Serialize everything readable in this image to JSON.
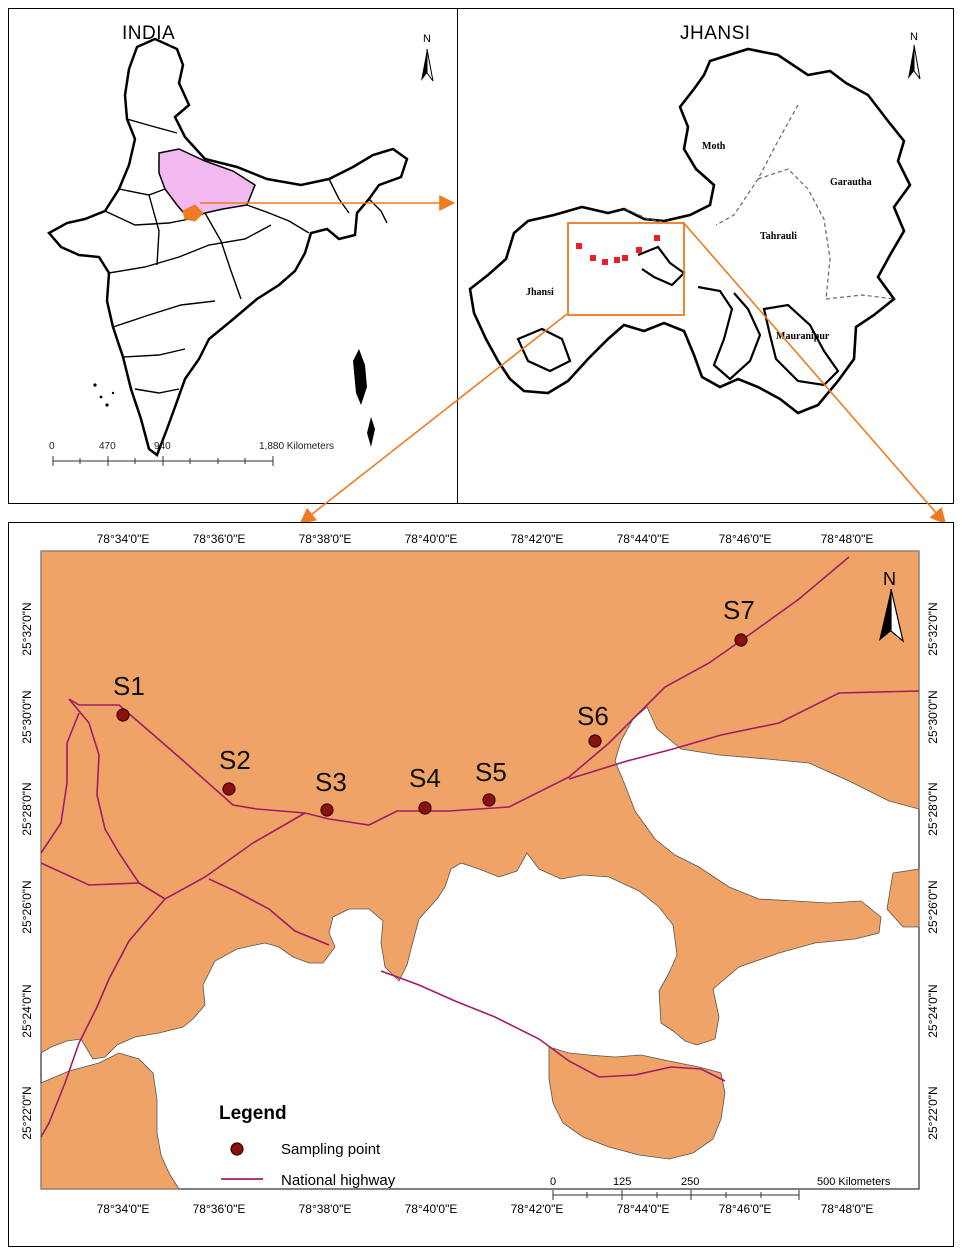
{
  "india_panel": {
    "title": "INDIA",
    "north_label": "N",
    "scale": {
      "ticks": [
        "0",
        "470",
        "940",
        "1,880 Kilometers"
      ]
    }
  },
  "jhansi_panel": {
    "title": "JHANSI",
    "north_label": "N",
    "tehsils": [
      "Moth",
      "Garautha",
      "Tahrauli",
      "Jhansi",
      "Mauranipur"
    ]
  },
  "detail_panel": {
    "north_label": "N",
    "top_longitudes": [
      "78°34'0\"E",
      "78°36'0\"E",
      "78°38'0\"E",
      "78°40'0\"E",
      "78°42'0\"E",
      "78°44'0\"E",
      "78°46'0\"E",
      "78°48'0\"E"
    ],
    "bottom_longitudes": [
      "78°34'0\"E",
      "78°36'0\"E",
      "78°38'0\"E",
      "78°40'0\"E",
      "78°42'0\"E",
      "78°44'0\"E",
      "78°46'0\"E",
      "78°48'0\"E"
    ],
    "left_latitudes": [
      "25°32'0\"N",
      "25°30'0\"N",
      "25°28'0\"N",
      "25°26'0\"N",
      "25°24'0\"N",
      "25°22'0\"N"
    ],
    "right_latitudes": [
      "25°32'0\"N",
      "25°30'0\"N",
      "25°28'0\"N",
      "25°26'0\"N",
      "25°24'0\"N",
      "25°22'0\"N"
    ],
    "sampling_points": [
      "S1",
      "S2",
      "S3",
      "S4",
      "S5",
      "S6",
      "S7"
    ],
    "legend": {
      "title": "Legend",
      "sampling_point": "Sampling point",
      "national_highway": "National highway"
    },
    "scale": {
      "ticks": [
        "0",
        "125",
        "250",
        "500 Kilometers"
      ]
    }
  },
  "colors": {
    "land": "#F0A366",
    "highway": "#A01C6A",
    "point": "#8B1010",
    "highlight_state": "#F2B8F0",
    "arrow": "#EE7A22",
    "sample_marker": "#E8202A"
  }
}
